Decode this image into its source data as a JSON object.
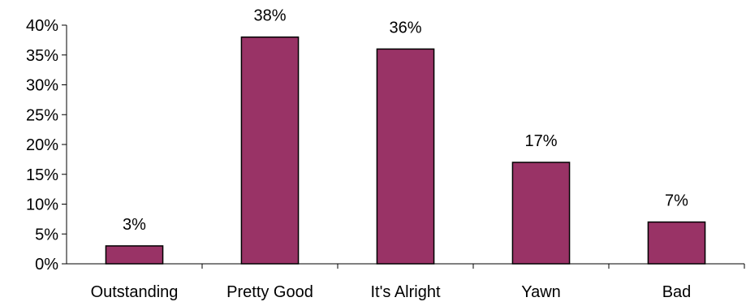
{
  "chart_data": {
    "type": "bar",
    "categories": [
      "Outstanding",
      "Pretty Good",
      "It's Alright",
      "Yawn",
      "Bad"
    ],
    "values": [
      3,
      38,
      36,
      17,
      7
    ],
    "data_labels": [
      "3%",
      "38%",
      "36%",
      "17%",
      "7%"
    ],
    "ylim": [
      0,
      40
    ],
    "y_ticks": [
      0,
      5,
      10,
      15,
      20,
      25,
      30,
      35,
      40
    ],
    "y_tick_labels": [
      "0%",
      "5%",
      "10%",
      "15%",
      "20%",
      "25%",
      "30%",
      "35%",
      "40%"
    ],
    "title": "",
    "xlabel": "",
    "ylabel": "",
    "grid": false,
    "legend": "none",
    "bar_color": "#993366",
    "bar_edge_color": "#000000"
  }
}
